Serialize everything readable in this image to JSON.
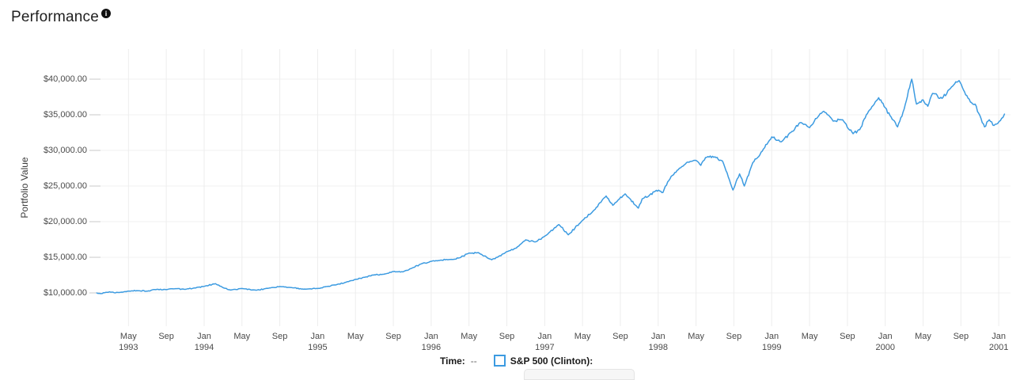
{
  "header": {
    "title": "Performance",
    "info_icon": "i"
  },
  "y_axis_title": "Portfolio Value",
  "legend": {
    "time_label": "Time:",
    "time_value": "--",
    "series_label": "S&P 500 (Clinton):"
  },
  "colors": {
    "line": "#3c9be1",
    "grid_vertical": "#ededed",
    "grid_horizontal": "#f0f0f0",
    "tick": "#c9c9c9",
    "axis_text": "#4a4a4a"
  },
  "chart_data": {
    "type": "line",
    "title": "Performance",
    "xlabel": "",
    "ylabel": "Portfolio Value",
    "x_unit": "months since Jan 1993",
    "x_range": [
      0.65,
      96.6
    ],
    "ylim": [
      10000,
      40000
    ],
    "grid": true,
    "legend_position": "bottom",
    "y_ticks": [
      {
        "value": 10000,
        "label": "$10,000.00"
      },
      {
        "value": 15000,
        "label": "$15,000.00"
      },
      {
        "value": 20000,
        "label": "$20,000.00"
      },
      {
        "value": 25000,
        "label": "$25,000.00"
      },
      {
        "value": 30000,
        "label": "$30,000.00"
      },
      {
        "value": 35000,
        "label": "$35,000.00"
      },
      {
        "value": 40000,
        "label": "$40,000.00"
      }
    ],
    "x_ticks": [
      {
        "month": 4,
        "label": "May",
        "year": "1993"
      },
      {
        "month": 8,
        "label": "Sep",
        "year": null
      },
      {
        "month": 12,
        "label": "Jan",
        "year": "1994"
      },
      {
        "month": 16,
        "label": "May",
        "year": null
      },
      {
        "month": 20,
        "label": "Sep",
        "year": null
      },
      {
        "month": 24,
        "label": "Jan",
        "year": "1995"
      },
      {
        "month": 28,
        "label": "May",
        "year": null
      },
      {
        "month": 32,
        "label": "Sep",
        "year": null
      },
      {
        "month": 36,
        "label": "Jan",
        "year": "1996"
      },
      {
        "month": 40,
        "label": "May",
        "year": null
      },
      {
        "month": 44,
        "label": "Sep",
        "year": null
      },
      {
        "month": 48,
        "label": "Jan",
        "year": "1997"
      },
      {
        "month": 52,
        "label": "May",
        "year": null
      },
      {
        "month": 56,
        "label": "Sep",
        "year": null
      },
      {
        "month": 60,
        "label": "Jan",
        "year": "1998"
      },
      {
        "month": 64,
        "label": "May",
        "year": null
      },
      {
        "month": 68,
        "label": "Sep",
        "year": null
      },
      {
        "month": 72,
        "label": "Jan",
        "year": "1999"
      },
      {
        "month": 76,
        "label": "May",
        "year": null
      },
      {
        "month": 80,
        "label": "Sep",
        "year": null
      },
      {
        "month": 84,
        "label": "Jan",
        "year": "2000"
      },
      {
        "month": 88,
        "label": "May",
        "year": null
      },
      {
        "month": 92,
        "label": "Sep",
        "year": null
      },
      {
        "month": 96,
        "label": "Jan",
        "year": "2001"
      }
    ],
    "series": [
      {
        "name": "S&P 500 (Clinton)",
        "color": "#3c9be1",
        "points": [
          [
            0.65,
            10000
          ],
          [
            1.1,
            9900
          ],
          [
            2,
            10150
          ],
          [
            2.6,
            10000
          ],
          [
            3,
            10060
          ],
          [
            4,
            10250
          ],
          [
            5,
            10310
          ],
          [
            6,
            10250
          ],
          [
            7,
            10500
          ],
          [
            8,
            10450
          ],
          [
            9,
            10600
          ],
          [
            10,
            10500
          ],
          [
            11,
            10700
          ],
          [
            12,
            10920
          ],
          [
            13.2,
            11300
          ],
          [
            14,
            10750
          ],
          [
            14.8,
            10400
          ],
          [
            16,
            10620
          ],
          [
            17.5,
            10380
          ],
          [
            19,
            10700
          ],
          [
            20,
            10900
          ],
          [
            21,
            10780
          ],
          [
            22.5,
            10520
          ],
          [
            23,
            10560
          ],
          [
            24,
            10620
          ],
          [
            25,
            10900
          ],
          [
            26,
            11150
          ],
          [
            27,
            11500
          ],
          [
            28,
            11900
          ],
          [
            29,
            12200
          ],
          [
            30,
            12550
          ],
          [
            31,
            12620
          ],
          [
            32,
            13000
          ],
          [
            33,
            12960
          ],
          [
            34,
            13500
          ],
          [
            35,
            14100
          ],
          [
            36,
            14430
          ],
          [
            37,
            14600
          ],
          [
            38,
            14700
          ],
          [
            39,
            14920
          ],
          [
            40,
            15600
          ],
          [
            41,
            15650
          ],
          [
            42.4,
            14650
          ],
          [
            43,
            15000
          ],
          [
            44,
            15800
          ],
          [
            45,
            16300
          ],
          [
            46,
            17450
          ],
          [
            47,
            17150
          ],
          [
            48,
            17950
          ],
          [
            49.5,
            19600
          ],
          [
            50.5,
            18150
          ],
          [
            52,
            20200
          ],
          [
            53,
            21300
          ],
          [
            54.5,
            23600
          ],
          [
            55.2,
            22300
          ],
          [
            56.5,
            23900
          ],
          [
            57.9,
            21900
          ],
          [
            58.3,
            23200
          ],
          [
            59,
            23600
          ],
          [
            59.8,
            24400
          ],
          [
            60.5,
            24100
          ],
          [
            61,
            25600
          ],
          [
            62,
            27200
          ],
          [
            63,
            28300
          ],
          [
            64,
            28600
          ],
          [
            64.5,
            27900
          ],
          [
            65,
            29000
          ],
          [
            66,
            29100
          ],
          [
            66.8,
            28500
          ],
          [
            67.9,
            24450
          ],
          [
            68.6,
            26700
          ],
          [
            69.1,
            25000
          ],
          [
            70,
            28300
          ],
          [
            71,
            29900
          ],
          [
            72,
            31900
          ],
          [
            73,
            31200
          ],
          [
            74,
            32500
          ],
          [
            75,
            33900
          ],
          [
            76,
            33200
          ],
          [
            77,
            34900
          ],
          [
            77.5,
            35500
          ],
          [
            78.5,
            34100
          ],
          [
            79.5,
            34300
          ],
          [
            80.6,
            32350
          ],
          [
            81.3,
            32900
          ],
          [
            82,
            35000
          ],
          [
            83.3,
            37400
          ],
          [
            84,
            36000
          ],
          [
            84.5,
            34900
          ],
          [
            85.3,
            33300
          ],
          [
            86,
            35800
          ],
          [
            86.8,
            40000
          ],
          [
            87.3,
            36500
          ],
          [
            88,
            37100
          ],
          [
            88.5,
            36200
          ],
          [
            89,
            38000
          ],
          [
            90,
            37300
          ],
          [
            91,
            38900
          ],
          [
            91.8,
            39800
          ],
          [
            92.5,
            37800
          ],
          [
            93,
            36800
          ],
          [
            93.5,
            36500
          ],
          [
            94,
            34900
          ],
          [
            94.5,
            33300
          ],
          [
            95,
            34300
          ],
          [
            95.5,
            33500
          ],
          [
            95.9,
            33800
          ],
          [
            96.3,
            34500
          ],
          [
            96.6,
            35100
          ]
        ]
      }
    ]
  }
}
